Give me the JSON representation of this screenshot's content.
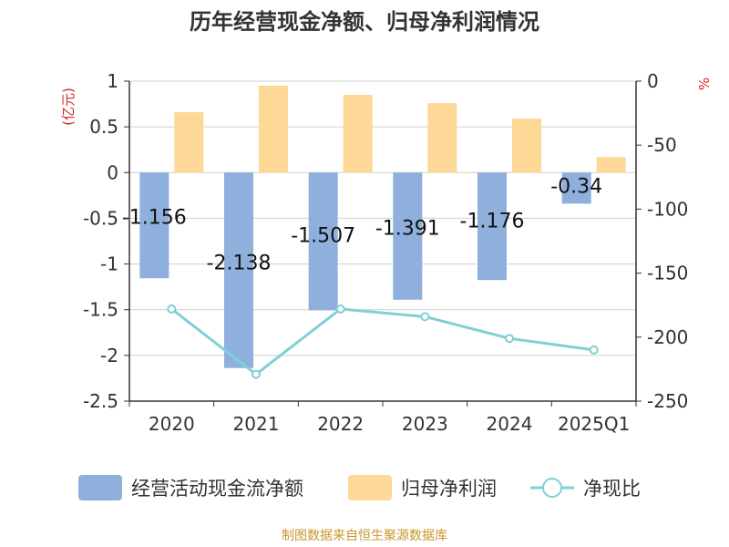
{
  "chart_data": {
    "type": "bar",
    "title": "历年经营现金净额、归母净利润情况",
    "categories": [
      "2020",
      "2021",
      "2022",
      "2023",
      "2024",
      "2025Q1"
    ],
    "series": [
      {
        "name": "经营活动现金流净额",
        "type": "bar",
        "axis": "left",
        "color": "#8fb0dc",
        "values": [
          -1.156,
          -2.138,
          -1.507,
          -1.391,
          -1.176,
          -0.34
        ],
        "labels": [
          "-1.156",
          "-2.138",
          "-1.507",
          "-1.391",
          "-1.176",
          "-0.34"
        ]
      },
      {
        "name": "归母净利润",
        "type": "bar",
        "axis": "left",
        "color": "#fdd896",
        "values": [
          0.66,
          0.95,
          0.85,
          0.76,
          0.59,
          0.17
        ]
      },
      {
        "name": "净现比",
        "type": "line",
        "axis": "right",
        "color": "#7fd0d6",
        "values": [
          -178,
          -229,
          -178,
          -184,
          -201,
          -210
        ]
      }
    ],
    "ylabel": "(亿元)",
    "y2label": "%",
    "ylim": [
      -2.5,
      1
    ],
    "y2lim": [
      -250,
      0
    ],
    "yticks": [
      "1",
      "0.5",
      "0",
      "-0.5",
      "-1",
      "-1.5",
      "-2",
      "-2.5"
    ],
    "y2ticks": [
      "0",
      "-50",
      "-100",
      "-150",
      "-200",
      "-250"
    ],
    "grid": true,
    "legend_position": "bottom",
    "source": "制图数据来自恒生聚源数据库"
  }
}
